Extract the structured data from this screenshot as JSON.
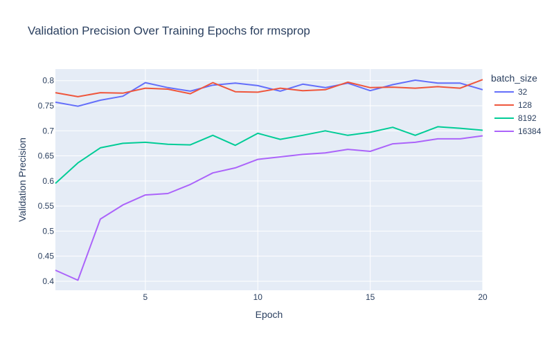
{
  "chart_data": {
    "type": "line",
    "title": "Validation Precision Over Training Epochs for rmsprop",
    "xlabel": "Epoch",
    "ylabel": "Validation Precision",
    "xlim": [
      1,
      20
    ],
    "ylim": [
      0.382,
      0.823
    ],
    "xticks": [
      5,
      10,
      15,
      20
    ],
    "yticks": [
      0.4,
      0.45,
      0.5,
      0.55,
      0.6,
      0.65,
      0.7,
      0.75,
      0.8
    ],
    "ytick_labels": [
      "0.4",
      "0.45",
      "0.5",
      "0.55",
      "0.6",
      "0.65",
      "0.7",
      "0.75",
      "0.8"
    ],
    "grid": true,
    "legend_title": "batch_size",
    "legend_position": "right",
    "x": [
      1,
      2,
      3,
      4,
      5,
      6,
      7,
      8,
      9,
      10,
      11,
      12,
      13,
      14,
      15,
      16,
      17,
      18,
      19,
      20
    ],
    "series": [
      {
        "name": "32",
        "color": "#636efa",
        "values": [
          0.757,
          0.749,
          0.761,
          0.769,
          0.796,
          0.786,
          0.779,
          0.791,
          0.795,
          0.79,
          0.779,
          0.793,
          0.786,
          0.795,
          0.78,
          0.792,
          0.801,
          0.795,
          0.795,
          0.782
        ]
      },
      {
        "name": "128",
        "color": "#ef553b",
        "values": [
          0.776,
          0.768,
          0.776,
          0.775,
          0.785,
          0.783,
          0.774,
          0.796,
          0.778,
          0.777,
          0.785,
          0.78,
          0.782,
          0.797,
          0.786,
          0.787,
          0.785,
          0.788,
          0.785,
          0.802
        ]
      },
      {
        "name": "8192",
        "color": "#00cc96",
        "values": [
          0.595,
          0.636,
          0.666,
          0.675,
          0.677,
          0.673,
          0.672,
          0.691,
          0.671,
          0.695,
          0.683,
          0.691,
          0.7,
          0.691,
          0.697,
          0.707,
          0.691,
          0.708,
          0.705,
          0.701
        ]
      },
      {
        "name": "16384",
        "color": "#ab63fa",
        "values": [
          0.422,
          0.402,
          0.524,
          0.552,
          0.572,
          0.575,
          0.593,
          0.616,
          0.626,
          0.643,
          0.648,
          0.653,
          0.656,
          0.663,
          0.659,
          0.674,
          0.677,
          0.684,
          0.684,
          0.69
        ]
      }
    ]
  }
}
